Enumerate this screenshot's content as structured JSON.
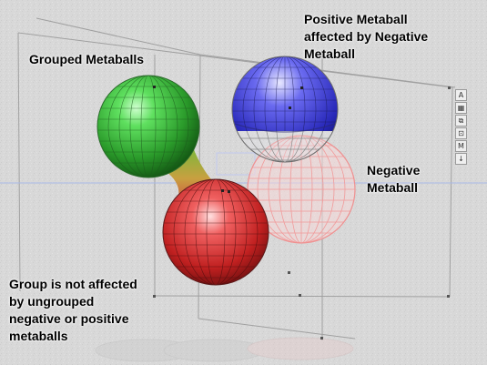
{
  "labels": {
    "grouped": "Grouped Metaballs",
    "positive": "Positive Metaball\naffected by Negative\nMetaball",
    "negative": "Negative\nMetaball",
    "group_note": "Group is not affected\nby ungrouped\nnegative or positive\nmetaballs"
  },
  "toolbar": {
    "buttons": [
      {
        "glyph": "A",
        "icon": "text-icon"
      },
      {
        "glyph": "▦",
        "icon": "square-icon"
      },
      {
        "glyph": "⧉",
        "icon": "move-icon"
      },
      {
        "glyph": "⊡",
        "icon": "frame-icon"
      },
      {
        "glyph": "M",
        "icon": "m-icon"
      },
      {
        "glyph": "↓",
        "icon": "arrow-down-icon"
      }
    ]
  },
  "colors": {
    "background": "#d9d9d9",
    "grouped_green": "#3ec23e",
    "grouped_red": "#dd2b2b",
    "positive_blue": "#3a3ad6",
    "negative_pink": "#f3a5a5",
    "axis_blue": "#a9b7e6"
  }
}
